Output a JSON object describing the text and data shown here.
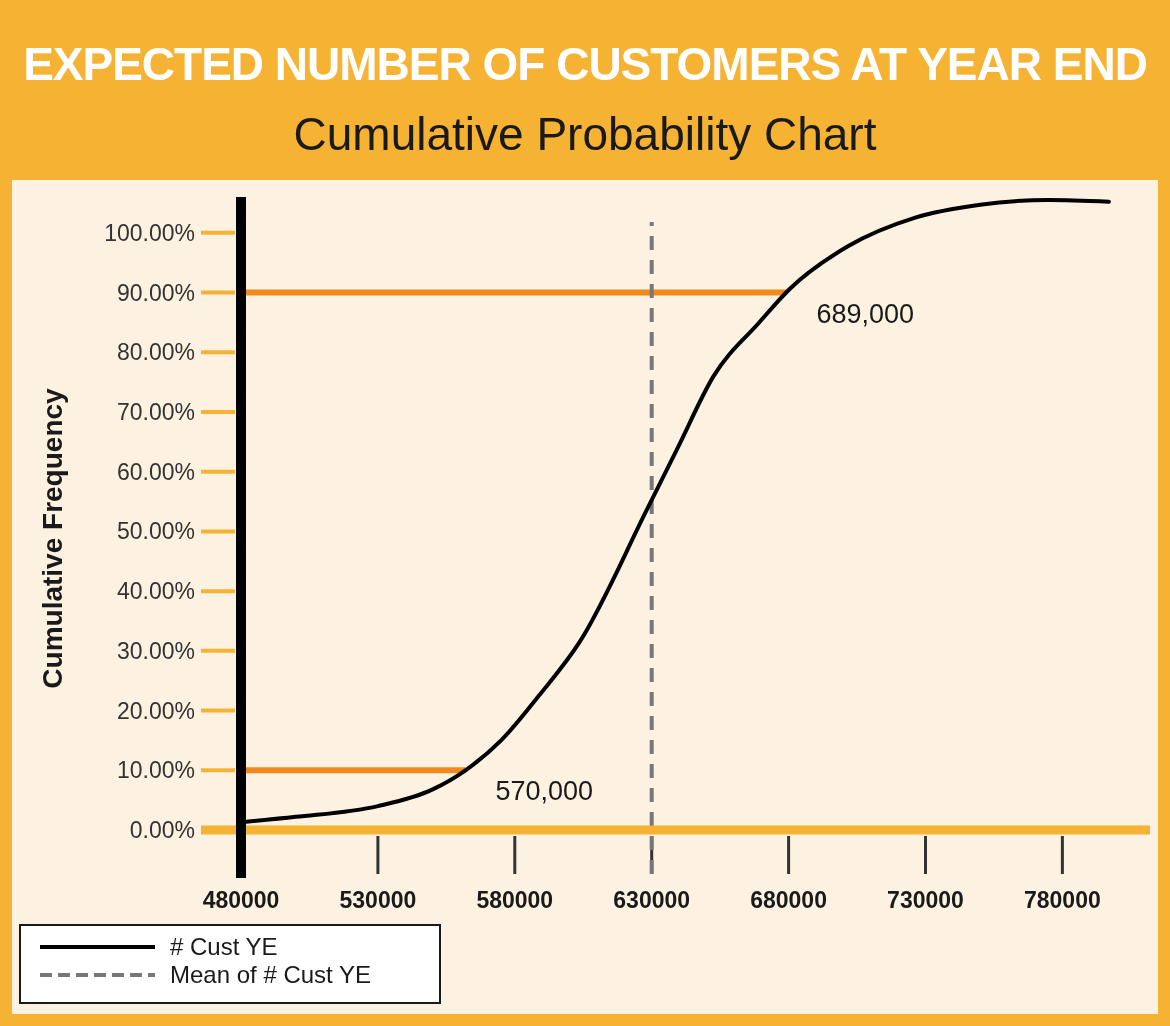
{
  "chart_data": {
    "type": "line",
    "title": "EXPECTED NUMBER OF CUSTOMERS AT YEAR END",
    "subtitle": "Cumulative Probability Chart",
    "ylabel": "Cumulative Frequency",
    "x": [
      480000,
      500000,
      530000,
      550000,
      562000,
      575000,
      589000,
      603700,
      628200,
      639500,
      652600,
      669100,
      680400,
      701500,
      726000,
      750000,
      775000,
      797000
    ],
    "series": [
      {
        "name": "# Cust YE",
        "color": "#000000",
        "values": [
          1.3,
          2.2,
          4.0,
          6.8,
          10,
          15,
          22.6,
          31.5,
          53.6,
          64,
          76,
          84.9,
          90.6,
          97.7,
          102.5,
          104.7,
          105.5,
          105.2
        ]
      }
    ],
    "xlim": [
      480000,
      812000
    ],
    "xticks": [
      480000,
      530000,
      580000,
      630000,
      680000,
      730000,
      780000
    ],
    "ylim": [
      0,
      106
    ],
    "yticks": [
      {
        "value": 0,
        "label": "0.00%"
      },
      {
        "value": 10,
        "label": "10.00%"
      },
      {
        "value": 20,
        "label": "20.00%"
      },
      {
        "value": 30,
        "label": "30.00%"
      },
      {
        "value": 40,
        "label": "40.00%"
      },
      {
        "value": 50,
        "label": "50.00%"
      },
      {
        "value": 60,
        "label": "60.00%"
      },
      {
        "value": 70,
        "label": "70.00%"
      },
      {
        "value": 80,
        "label": "80.00%"
      },
      {
        "value": 90,
        "label": "90.00%"
      },
      {
        "value": 100,
        "label": "100.00%"
      }
    ],
    "ref_lines": [
      {
        "axis": "y",
        "value": 10,
        "color": "#f08a1c"
      },
      {
        "axis": "y",
        "value": 90,
        "color": "#f08a1c"
      },
      {
        "axis": "x",
        "value": 630000,
        "label": "Mean of # Cust YE",
        "color": "#777777",
        "line_style": "dashed"
      }
    ],
    "annotations": [
      "570,000",
      "689,000"
    ],
    "grid": false,
    "legend": "bottom left",
    "marker": "none",
    "line_style": "solid"
  }
}
